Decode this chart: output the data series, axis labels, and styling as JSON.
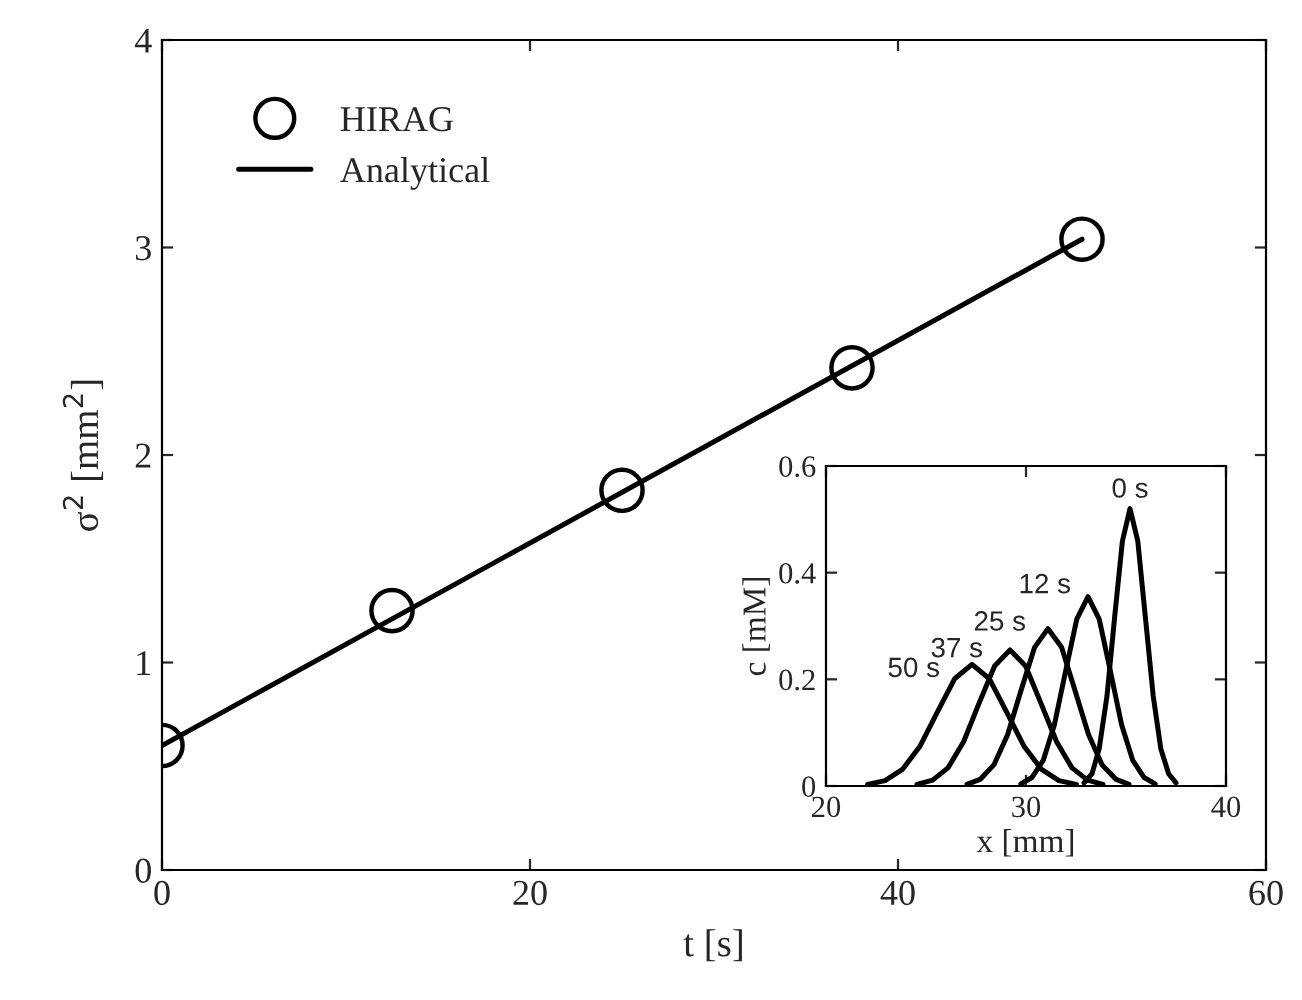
{
  "chart_data": [
    {
      "type": "scatter",
      "xlabel": "t [s]",
      "ylabel": "σ$^{2}$ [mm$^{2}$]",
      "xlim": [
        0,
        60
      ],
      "ylim": [
        0,
        4
      ],
      "xticks": [
        0,
        20,
        40,
        60
      ],
      "yticks": [
        0,
        1,
        2,
        3,
        4
      ],
      "legend": "top left",
      "grid": false,
      "series": [
        {
          "name": "HIRAG",
          "type": "scatter",
          "marker": "circle",
          "color": "#000000",
          "x": [
            0,
            12.5,
            25,
            37.5,
            50
          ],
          "values": [
            0.6,
            1.25,
            1.83,
            2.42,
            3.04
          ]
        },
        {
          "name": "Analytical",
          "type": "line",
          "line_style": "solid",
          "color": "#000000",
          "x": [
            0,
            50
          ],
          "values": [
            0.6,
            3.04
          ]
        }
      ]
    },
    {
      "type": "line",
      "xlabel": "x [mm]",
      "ylabel": "c [mM]",
      "xlim": [
        20,
        40
      ],
      "ylim": [
        0,
        0.6
      ],
      "xticks": [
        20,
        30,
        40
      ],
      "yticks": [
        0,
        0.2,
        0.4,
        0.6
      ],
      "grid": false,
      "legend": false,
      "series": [
        {
          "name": "0 s",
          "color": "#000000",
          "x": [
            32.9,
            33.3,
            33.66,
            34.05,
            34.43,
            34.82,
            35.2,
            35.59,
            35.97,
            36.36,
            36.74,
            37.13,
            37.5
          ],
          "values": [
            0.006,
            0.023,
            0.07,
            0.169,
            0.316,
            0.459,
            0.52,
            0.459,
            0.316,
            0.169,
            0.07,
            0.023,
            0.006
          ]
        },
        {
          "name": "12 s",
          "color": "#000000",
          "x": [
            29.74,
            30.3,
            30.86,
            31.42,
            31.98,
            32.54,
            33.1,
            33.66,
            34.22,
            34.78,
            35.34,
            35.9,
            36.46
          ],
          "values": [
            0.004,
            0.016,
            0.048,
            0.115,
            0.215,
            0.313,
            0.355,
            0.313,
            0.215,
            0.115,
            0.048,
            0.016,
            0.004
          ]
        },
        {
          "name": "25 s",
          "color": "#000000",
          "x": [
            27.05,
            27.73,
            28.4,
            29.08,
            29.75,
            30.43,
            31.1,
            31.78,
            32.45,
            33.13,
            33.8,
            34.48,
            35.15
          ],
          "values": [
            0.003,
            0.013,
            0.04,
            0.096,
            0.179,
            0.26,
            0.295,
            0.26,
            0.179,
            0.096,
            0.04,
            0.013,
            0.003
          ]
        },
        {
          "name": "37 s",
          "color": "#000000",
          "x": [
            24.55,
            25.33,
            26.1,
            26.88,
            27.65,
            28.43,
            29.2,
            29.98,
            30.75,
            31.53,
            32.3,
            33.08,
            33.85
          ],
          "values": [
            0.003,
            0.011,
            0.034,
            0.083,
            0.155,
            0.225,
            0.255,
            0.225,
            0.155,
            0.083,
            0.034,
            0.011,
            0.003
          ]
        },
        {
          "name": "50 s",
          "color": "#000000",
          "x": [
            22.08,
            22.95,
            23.82,
            24.69,
            25.56,
            26.43,
            27.3,
            28.17,
            29.04,
            29.91,
            30.78,
            31.65,
            32.52
          ],
          "values": [
            0.003,
            0.01,
            0.031,
            0.074,
            0.138,
            0.201,
            0.228,
            0.201,
            0.138,
            0.074,
            0.031,
            0.01,
            0.003
          ]
        }
      ]
    }
  ]
}
